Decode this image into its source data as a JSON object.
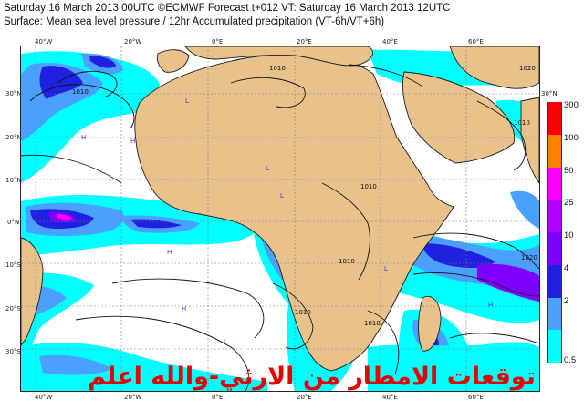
{
  "header": {
    "line1": "Saturday 16 March 2013 00UTC ©ECMWF Forecast t+012 VT: Saturday 16 March 2013 12UTC",
    "line2": "Surface: Mean sea level pressure / 12hr Accumulated precipitation (VT-6h/VT+6h)"
  },
  "map": {
    "lon_top": [
      "40°W",
      "20°W",
      "0°E",
      "20°E",
      "40°E",
      "60°E"
    ],
    "lon_bottom": [
      "40°W",
      "20°W",
      "0°E",
      "20°E",
      "40°E",
      "60°E"
    ],
    "lat_left": [
      "30°N",
      "20°N",
      "10°N",
      "0°N",
      "10°S",
      "20°S",
      "30°S"
    ],
    "lat_right": [
      "30°N"
    ],
    "isobars": [
      "1010",
      "1020",
      "1010",
      "1010",
      "1010",
      "1010",
      "1020",
      "1010",
      "1010"
    ],
    "highs_lows": [
      "H",
      "H",
      "L",
      "L",
      "H",
      "L",
      "H",
      "L",
      "H",
      "L"
    ]
  },
  "legend": {
    "labels": [
      "300",
      "100",
      "50",
      "25",
      "10",
      "4",
      "2",
      "0.5"
    ],
    "colors": [
      "#ff0000",
      "#ff7f00",
      "#ff00ff",
      "#b400ff",
      "#7f00ff",
      "#2020e0",
      "#4aa0ff",
      "#00ffff"
    ]
  },
  "colors": {
    "land": "#e8c28a",
    "ocean": "#ffffff",
    "coast": "#1a1a1a",
    "grid": "#7a7a7a"
  },
  "watermark": "توقعات الامطار من الارثي-والله اعلم"
}
